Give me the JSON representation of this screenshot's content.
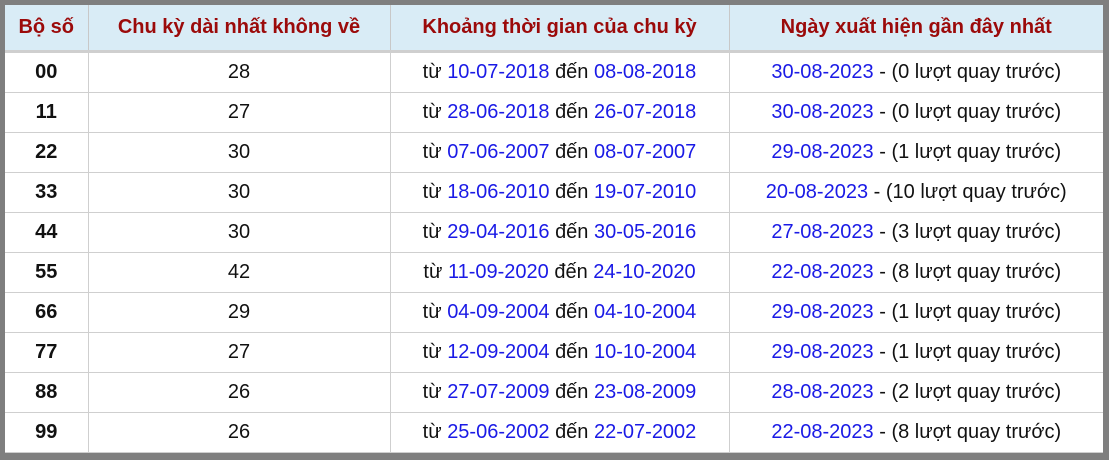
{
  "headers": [
    "Bộ số",
    "Chu kỳ dài nhất không về",
    "Khoảng thời gian của chu kỳ",
    "Ngày xuất hiện gần đây nhất"
  ],
  "labels": {
    "from": "từ",
    "to": "đến",
    "sep": "-"
  },
  "rows": [
    {
      "num": "00",
      "cycle": "28",
      "start": "10-07-2018",
      "end": "08-08-2018",
      "last": "30-08-2023",
      "ago": "(0 lượt quay trước)"
    },
    {
      "num": "11",
      "cycle": "27",
      "start": "28-06-2018",
      "end": "26-07-2018",
      "last": "30-08-2023",
      "ago": "(0 lượt quay trước)"
    },
    {
      "num": "22",
      "cycle": "30",
      "start": "07-06-2007",
      "end": "08-07-2007",
      "last": "29-08-2023",
      "ago": "(1 lượt quay trước)"
    },
    {
      "num": "33",
      "cycle": "30",
      "start": "18-06-2010",
      "end": "19-07-2010",
      "last": "20-08-2023",
      "ago": "(10 lượt quay trước)"
    },
    {
      "num": "44",
      "cycle": "30",
      "start": "29-04-2016",
      "end": "30-05-2016",
      "last": "27-08-2023",
      "ago": "(3 lượt quay trước)"
    },
    {
      "num": "55",
      "cycle": "42",
      "start": "11-09-2020",
      "end": "24-10-2020",
      "last": "22-08-2023",
      "ago": "(8 lượt quay trước)"
    },
    {
      "num": "66",
      "cycle": "29",
      "start": "04-09-2004",
      "end": "04-10-2004",
      "last": "29-08-2023",
      "ago": "(1 lượt quay trước)"
    },
    {
      "num": "77",
      "cycle": "27",
      "start": "12-09-2004",
      "end": "10-10-2004",
      "last": "29-08-2023",
      "ago": "(1 lượt quay trước)"
    },
    {
      "num": "88",
      "cycle": "26",
      "start": "27-07-2009",
      "end": "23-08-2009",
      "last": "28-08-2023",
      "ago": "(2 lượt quay trước)"
    },
    {
      "num": "99",
      "cycle": "26",
      "start": "25-06-2002",
      "end": "22-07-2002",
      "last": "22-08-2023",
      "ago": "(8 lượt quay trước)"
    }
  ],
  "colors": {
    "header_text": "#9b0a0a",
    "header_bg": "#d9ecf6",
    "date_link": "#1a1ae6",
    "frame": "#7f7f7f"
  }
}
